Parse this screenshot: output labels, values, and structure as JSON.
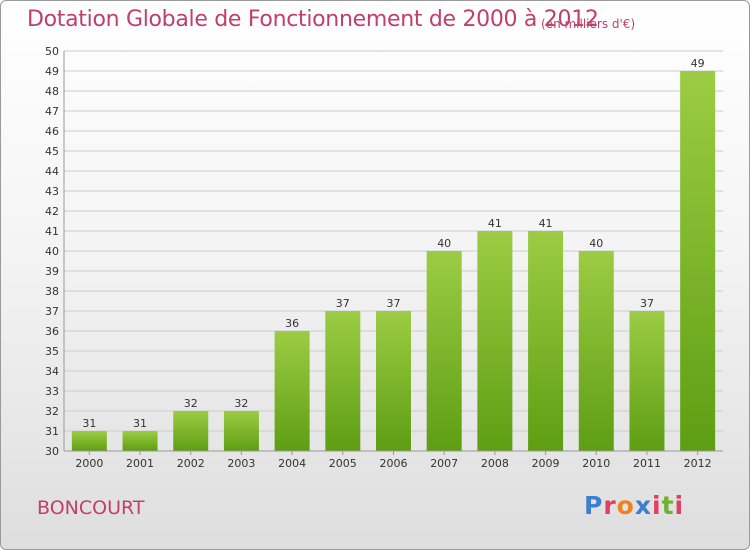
{
  "header": {
    "title": "Dotation Globale de Fonctionnement de 2000 à 2012",
    "unit": "(en milliers d'€)"
  },
  "footer": {
    "town": "BONCOURT",
    "logo_letters": [
      "P",
      "r",
      "o",
      "x",
      "i",
      "t",
      "i"
    ],
    "logo_colors": [
      "#3a7fd0",
      "#e04060",
      "#f08020",
      "#3a7fd0",
      "#e04060",
      "#70b030",
      "#e04060"
    ]
  },
  "colors": {
    "bar_top": "#9ccc44",
    "bar_bottom": "#5e9e12",
    "accent": "#c0406a",
    "grid": "#cccccc"
  },
  "chart_data": {
    "type": "bar",
    "title": "Dotation Globale de Fonctionnement de 2000 à 2012",
    "subtitle": "(en milliers d'€)",
    "xlabel": "",
    "ylabel": "",
    "ylim": [
      30,
      50
    ],
    "grid": true,
    "categories": [
      "2000",
      "2001",
      "2002",
      "2003",
      "2004",
      "2005",
      "2006",
      "2007",
      "2008",
      "2009",
      "2010",
      "2011",
      "2012"
    ],
    "values": [
      31,
      31,
      32,
      32,
      36,
      37,
      37,
      40,
      41,
      41,
      40,
      37,
      49
    ]
  }
}
